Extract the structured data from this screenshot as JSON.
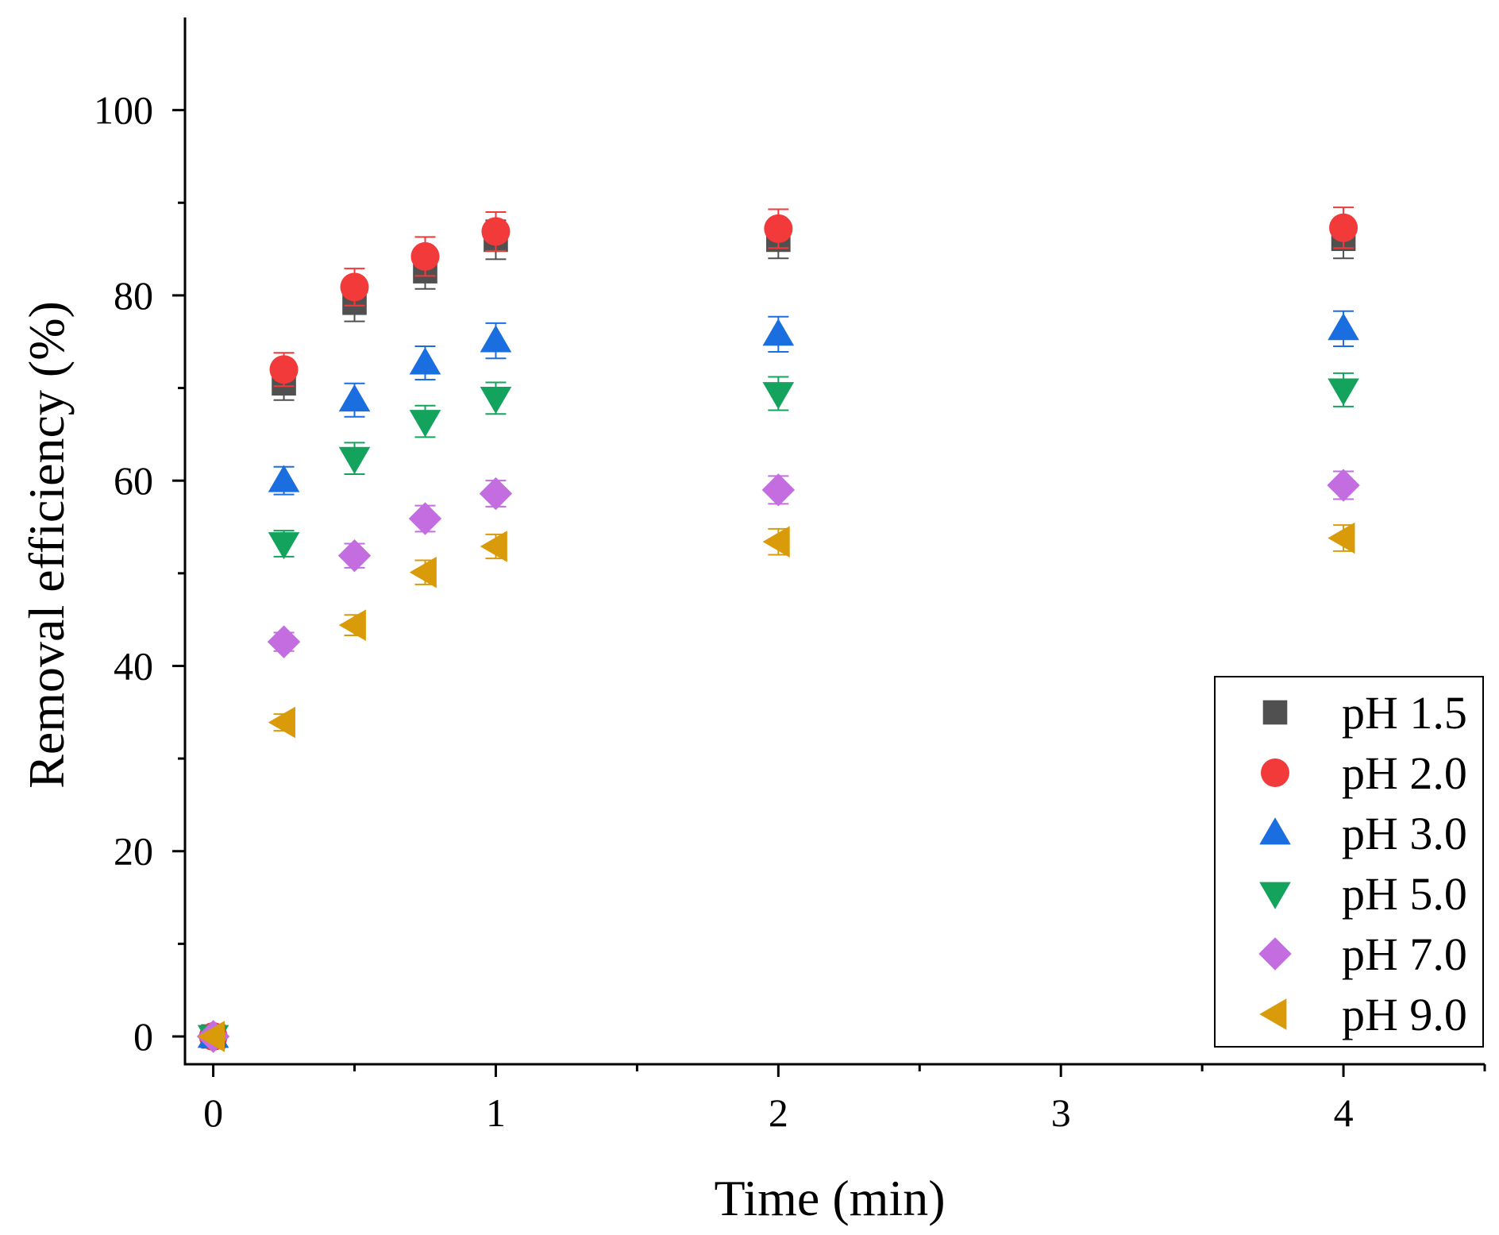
{
  "chart_data": {
    "type": "scatter",
    "title": "",
    "xlabel": "Time (min)",
    "ylabel": "Removal efficiency (%)",
    "xlim": [
      -0.1,
      4.5
    ],
    "ylim": [
      -3,
      110
    ],
    "x_ticks": [
      0,
      1,
      2,
      3,
      4
    ],
    "x_tick_labels": [
      "0",
      "1",
      "2",
      "3",
      "4"
    ],
    "x_minor_ticks": [
      0.5,
      1.5,
      2.5,
      3.5,
      4.5
    ],
    "y_ticks": [
      0,
      20,
      40,
      60,
      80,
      100
    ],
    "y_tick_labels": [
      "0",
      "20",
      "40",
      "60",
      "80",
      "100"
    ],
    "y_minor_ticks": [
      10,
      30,
      50,
      70,
      90
    ],
    "grid": false,
    "legend_position": "bottom-right",
    "series": [
      {
        "name": "pH 1.5",
        "marker": "square",
        "color": "#505050",
        "x": [
          0,
          0.25,
          0.5,
          0.75,
          1,
          2,
          4
        ],
        "y": [
          0,
          70.5,
          79.2,
          82.6,
          86.0,
          86.0,
          86.1
        ],
        "err": [
          0,
          1.8,
          2.0,
          1.9,
          2.1,
          2.0,
          2.1
        ]
      },
      {
        "name": "pH 2.0",
        "marker": "circle",
        "color": "#f23a3a",
        "x": [
          0,
          0.25,
          0.5,
          0.75,
          1,
          2,
          4
        ],
        "y": [
          0,
          72.0,
          80.9,
          84.2,
          86.9,
          87.2,
          87.3
        ],
        "err": [
          0,
          1.8,
          2.0,
          2.1,
          2.1,
          2.1,
          2.2
        ]
      },
      {
        "name": "pH 3.0",
        "marker": "triangle-up",
        "color": "#1a6ee0",
        "x": [
          0,
          0.25,
          0.5,
          0.75,
          1,
          2,
          4
        ],
        "y": [
          0,
          60.0,
          68.7,
          72.7,
          75.1,
          75.8,
          76.4
        ],
        "err": [
          0,
          1.5,
          1.8,
          1.8,
          1.9,
          1.9,
          1.9
        ]
      },
      {
        "name": "pH 5.0",
        "marker": "triangle-down",
        "color": "#14a35c",
        "x": [
          0,
          0.25,
          0.5,
          0.75,
          1,
          2,
          4
        ],
        "y": [
          0,
          53.2,
          62.4,
          66.4,
          68.9,
          69.4,
          69.8
        ],
        "err": [
          0,
          1.4,
          1.7,
          1.7,
          1.7,
          1.8,
          1.8
        ]
      },
      {
        "name": "pH 7.0",
        "marker": "diamond",
        "color": "#c36de0",
        "x": [
          0,
          0.25,
          0.5,
          0.75,
          1,
          2,
          4
        ],
        "y": [
          0,
          42.6,
          51.9,
          55.9,
          58.6,
          59.0,
          59.5
        ],
        "err": [
          0,
          1.0,
          1.3,
          1.4,
          1.4,
          1.5,
          1.5
        ]
      },
      {
        "name": "pH 9.0",
        "marker": "triangle-left",
        "color": "#d99b0a",
        "x": [
          0,
          0.25,
          0.5,
          0.75,
          1,
          2,
          4
        ],
        "y": [
          0,
          33.9,
          44.4,
          50.1,
          52.9,
          53.4,
          53.8
        ],
        "err": [
          0,
          0.9,
          1.1,
          1.3,
          1.3,
          1.4,
          1.4
        ]
      }
    ]
  }
}
